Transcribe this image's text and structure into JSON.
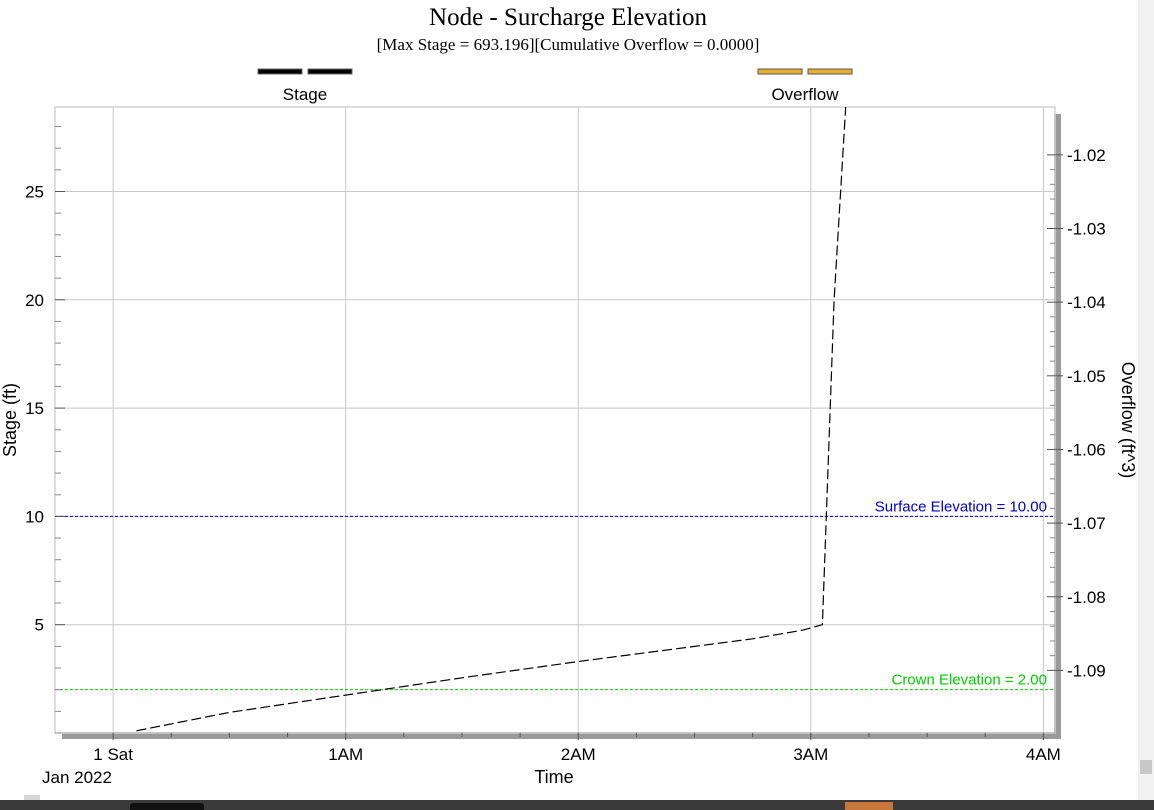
{
  "chart_data": {
    "type": "line",
    "title": "Node - Surcharge Elevation",
    "subtitle": "[Max  Stage = 693.196][Cumulative Overflow = 0.0000]",
    "xlabel": "Time",
    "ylabel": "Stage (ft)",
    "y2label": "Overflow (ft^3)",
    "x_ticks": [
      {
        "value": 0,
        "label": "1 Sat"
      },
      {
        "value": 60,
        "label": "1AM"
      },
      {
        "value": 120,
        "label": "2AM"
      },
      {
        "value": 180,
        "label": "3AM"
      },
      {
        "value": 240,
        "label": "4AM"
      }
    ],
    "x_sub_label": "Jan 2022",
    "xlim": [
      -15,
      243
    ],
    "ylim": [
      0,
      28.9
    ],
    "y_ticks": [
      5,
      10,
      15,
      20,
      25
    ],
    "y2lim": [
      -1.0985,
      -1.0135
    ],
    "y2_ticks": [
      -1.02,
      -1.03,
      -1.04,
      -1.05,
      -1.06,
      -1.07,
      -1.08,
      -1.09
    ],
    "grid": true,
    "legend": [
      {
        "label": "Stage",
        "color": "#000000",
        "position": "top-left"
      },
      {
        "label": "Overflow",
        "color": "#e8b030",
        "position": "top-right"
      }
    ],
    "series": [
      {
        "name": "Stage",
        "color": "#000000",
        "dashed": true,
        "x": [
          6,
          30,
          60,
          90,
          120,
          150,
          165,
          178,
          183,
          186,
          189
        ],
        "y": [
          0.1,
          0.95,
          1.75,
          2.55,
          3.3,
          4.0,
          4.35,
          4.75,
          5.0,
          20.0,
          28.9
        ]
      }
    ],
    "reference_lines": [
      {
        "label": "Surface Elevation = 10.00",
        "y": 10.0,
        "color": "#0000cc"
      },
      {
        "label": "Crown Elevation = 2.00",
        "y": 2.0,
        "color": "#00cc00"
      }
    ]
  }
}
